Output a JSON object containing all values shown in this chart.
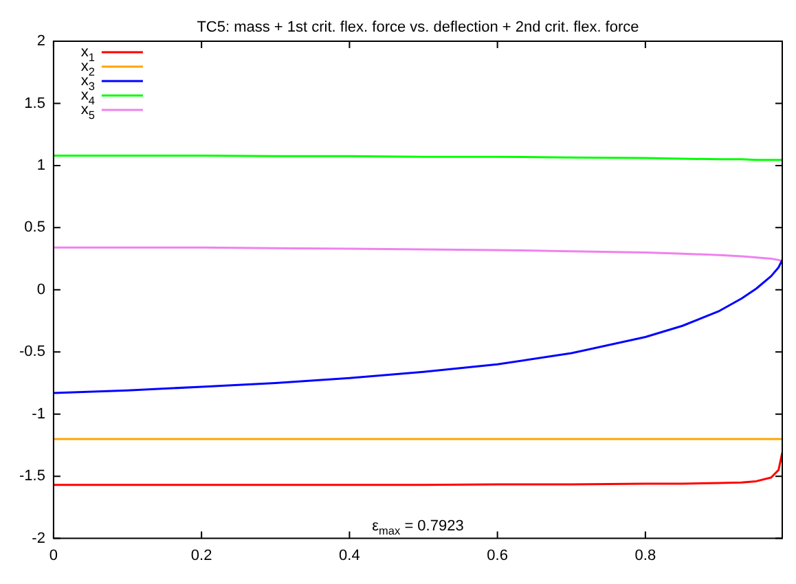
{
  "chart_data": {
    "type": "line",
    "title": "TC5: mass + 1st crit. flex. force vs. deflection + 2nd crit. flex. force",
    "x": [
      0,
      0.1,
      0.2,
      0.3,
      0.4,
      0.5,
      0.6,
      0.7,
      0.8,
      0.85,
      0.9,
      0.93,
      0.95,
      0.97,
      0.98,
      0.985
    ],
    "series": [
      {
        "name": "x$_{1}$",
        "color": "#ff0000",
        "values": [
          -1.57,
          -1.57,
          -1.57,
          -1.57,
          -1.57,
          -1.57,
          -1.565,
          -1.565,
          -1.56,
          -1.56,
          -1.555,
          -1.55,
          -1.54,
          -1.51,
          -1.45,
          -1.31
        ]
      },
      {
        "name": "x$_{2}$",
        "color": "#ffa500",
        "values": [
          -1.2,
          -1.2,
          -1.2,
          -1.2,
          -1.2,
          -1.2,
          -1.2,
          -1.2,
          -1.2,
          -1.2,
          -1.2,
          -1.2,
          -1.2,
          -1.2,
          -1.2,
          -1.2
        ]
      },
      {
        "name": "x$_{3}$",
        "color": "#0000ff",
        "values": [
          -0.83,
          -0.81,
          -0.78,
          -0.75,
          -0.71,
          -0.66,
          -0.6,
          -0.51,
          -0.38,
          -0.29,
          -0.17,
          -0.07,
          0.01,
          0.11,
          0.18,
          0.24
        ]
      },
      {
        "name": "x$_{4}$",
        "color": "#00ff00",
        "values": [
          1.08,
          1.08,
          1.08,
          1.075,
          1.075,
          1.07,
          1.07,
          1.065,
          1.06,
          1.055,
          1.05,
          1.05,
          1.045,
          1.045,
          1.045,
          1.045
        ]
      },
      {
        "name": "x$_{5}$",
        "color": "#ee82ee",
        "values": [
          0.34,
          0.34,
          0.34,
          0.335,
          0.33,
          0.325,
          0.32,
          0.31,
          0.3,
          0.29,
          0.28,
          0.27,
          0.26,
          0.25,
          0.24,
          0.23
        ]
      }
    ],
    "xlim": [
      0,
      0.985
    ],
    "xticks": [
      0,
      0.2,
      0.4,
      0.6,
      0.8
    ],
    "ylim": [
      -2,
      2
    ],
    "yticks": [
      -2,
      -1.5,
      -1,
      -0.5,
      0,
      0.5,
      1,
      1.5,
      2
    ],
    "grid": false,
    "legend": "top left",
    "marker": "none",
    "line_style": "solid",
    "annotations": [
      "ε$_{max}$ = 0.7923"
    ]
  }
}
